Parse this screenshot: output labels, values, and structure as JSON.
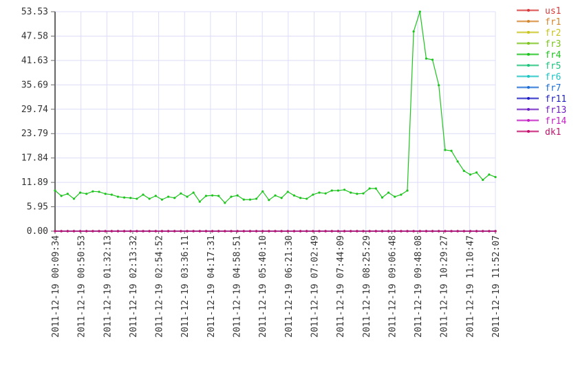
{
  "chart_data": {
    "type": "line",
    "title": "",
    "xlabel": "",
    "ylabel": "",
    "ylim": [
      0,
      53.53
    ],
    "grid": true,
    "legend_placement": "right",
    "y_ticks": [
      "0.00",
      "5.95",
      "11.89",
      "17.84",
      "23.79",
      "29.74",
      "35.69",
      "41.63",
      "47.58",
      "53.53"
    ],
    "x_ticks": [
      "2011-12-19 00:09:34",
      "2011-12-19 00:50:53",
      "2011-12-19 01:32:13",
      "2011-12-19 02:13:32",
      "2011-12-19 02:54:52",
      "2011-12-19 03:36:11",
      "2011-12-19 04:17:31",
      "2011-12-19 04:58:51",
      "2011-12-19 05:40:10",
      "2011-12-19 06:21:30",
      "2011-12-19 07:02:49",
      "2011-12-19 07:44:09",
      "2011-12-19 08:25:29",
      "2011-12-19 09:06:48",
      "2011-12-19 09:48:08",
      "2011-12-19 10:29:27",
      "2011-12-19 11:10:47",
      "2011-12-19 11:52:07"
    ],
    "series": [
      {
        "name": "us1",
        "color": "#d83a3a",
        "values": "zero"
      },
      {
        "name": "fr1",
        "color": "#d4862e",
        "values": "zero"
      },
      {
        "name": "fr2",
        "color": "#c8c41e",
        "values": "zero"
      },
      {
        "name": "fr3",
        "color": "#7cc41e",
        "values": "zero"
      },
      {
        "name": "fr4",
        "color": "#1ec41e",
        "values": [
          9.9,
          8.6,
          9.1,
          7.9,
          9.4,
          9.1,
          9.7,
          9.6,
          9.1,
          8.9,
          8.4,
          8.2,
          8.1,
          7.9,
          8.9,
          7.9,
          8.6,
          7.7,
          8.4,
          8.1,
          9.2,
          8.4,
          9.4,
          7.2,
          8.6,
          8.7,
          8.6,
          6.9,
          8.4,
          8.7,
          7.7,
          7.7,
          7.9,
          9.7,
          7.6,
          8.7,
          8.1,
          9.6,
          8.7,
          8.1,
          7.9,
          8.9,
          9.4,
          9.2,
          9.9,
          9.9,
          10.1,
          9.4,
          9.1,
          9.2,
          10.4,
          10.4,
          8.2,
          9.4,
          8.4,
          8.9,
          9.9,
          48.7,
          53.53,
          42.1,
          41.8,
          35.6,
          19.8,
          19.6,
          17.0,
          14.7,
          13.8,
          14.3,
          12.5,
          13.8,
          13.2
        ]
      },
      {
        "name": "fr5",
        "color": "#1ec47c",
        "values": "zero"
      },
      {
        "name": "fr6",
        "color": "#1ec4c4",
        "values": "zero"
      },
      {
        "name": "fr7",
        "color": "#1e6ed4",
        "values": "zero"
      },
      {
        "name": "fr11",
        "color": "#1e1ec4",
        "values": "zero"
      },
      {
        "name": "fr13",
        "color": "#6e1ec4",
        "values": "zero"
      },
      {
        "name": "fr14",
        "color": "#c41ec4",
        "values": "zero"
      },
      {
        "name": "dk1",
        "color": "#c4106e",
        "values": "zero"
      }
    ]
  }
}
